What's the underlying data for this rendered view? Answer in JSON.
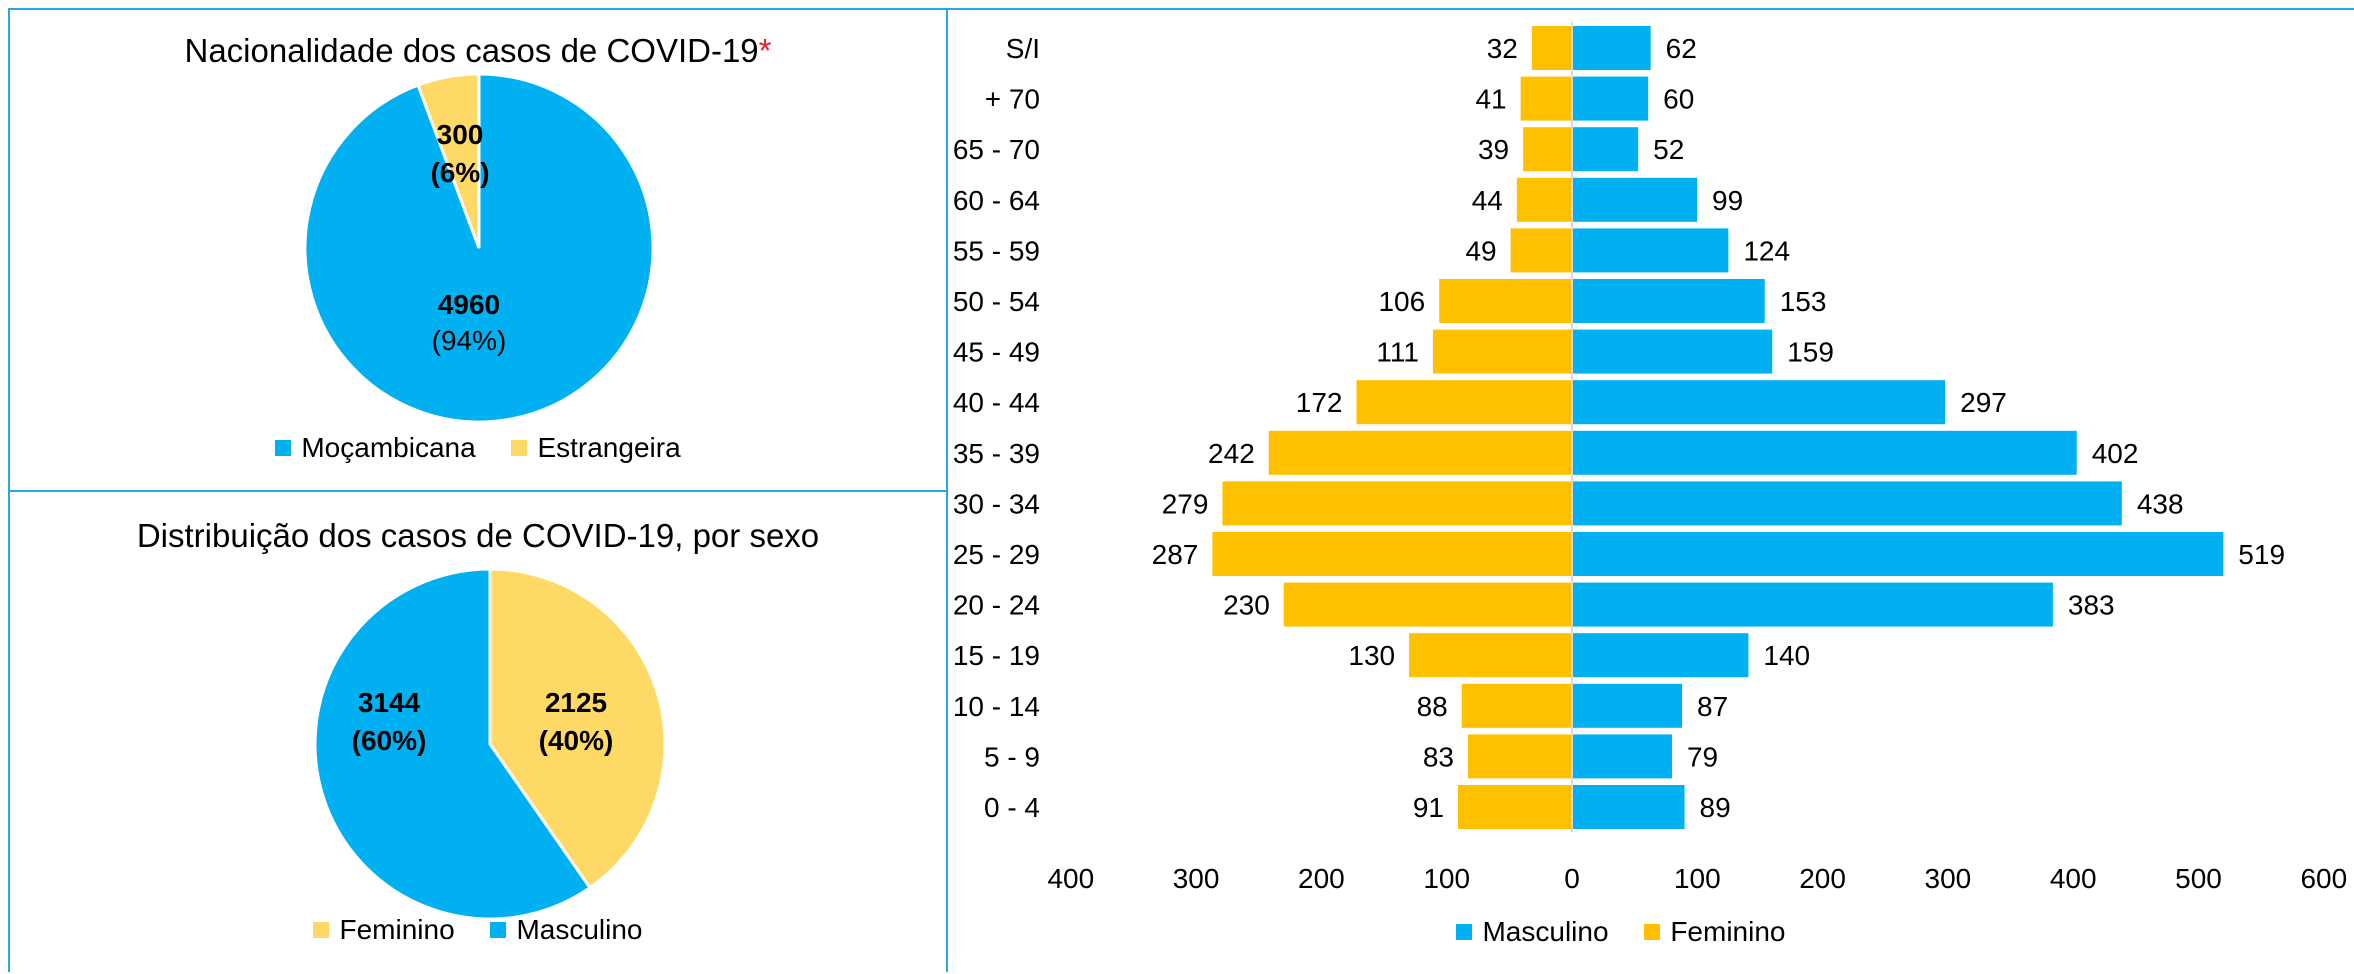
{
  "colors": {
    "mocambicana": "#00b0f0",
    "estrangeira": "#ffd966",
    "feminino_pie": "#ffd966",
    "masculino": "#00b0f0",
    "feminino_bar": "#ffc000",
    "border": "#2aa7df",
    "asterisk": "#e8202a"
  },
  "chart_data": [
    {
      "type": "pie",
      "title": "Nacionalidade dos casos de COVID-19",
      "title_marker": "*",
      "labels": [
        "Moçambicana",
        "Estrangeira"
      ],
      "values": [
        4960,
        300
      ],
      "value_labels": [
        "4960",
        "300"
      ],
      "percent_labels": [
        "(94%)",
        "(6%)"
      ],
      "legend": [
        "Moçambicana",
        "Estrangeira"
      ],
      "legend_position": "bottom"
    },
    {
      "type": "pie",
      "title": "Distribuição dos casos de COVID-19, por sexo",
      "labels": [
        "Feminino",
        "Masculino"
      ],
      "values": [
        2125,
        3144
      ],
      "value_labels": [
        "2125",
        "3144"
      ],
      "percent_labels": [
        "(40%)",
        "(60%)"
      ],
      "legend": [
        "Feminino",
        "Masculino"
      ],
      "legend_position": "bottom"
    },
    {
      "type": "bar",
      "orientation": "horizontal",
      "categories": [
        "S/I",
        "+ 70",
        "65 - 70",
        "60 - 64",
        "55 - 59",
        "50 - 54",
        "45 - 49",
        "40 - 44",
        "35 - 39",
        "30 - 34",
        "25 - 29",
        "20 - 24",
        "15 - 19",
        "10 - 14",
        "5 - 9",
        "0 - 4"
      ],
      "series": [
        {
          "name": "Masculino",
          "values": [
            62,
            60,
            52,
            99,
            124,
            153,
            159,
            297,
            402,
            438,
            519,
            383,
            140,
            87,
            79,
            89
          ]
        },
        {
          "name": "Feminino",
          "values": [
            32,
            41,
            39,
            44,
            49,
            106,
            111,
            172,
            242,
            279,
            287,
            230,
            130,
            88,
            83,
            91
          ]
        }
      ],
      "xlim": [
        -400,
        600
      ],
      "x_ticks": [
        -400,
        -300,
        -200,
        -100,
        0,
        100,
        200,
        300,
        400,
        500,
        600
      ],
      "x_tick_labels": [
        "400",
        "300",
        "200",
        "100",
        "0",
        "100",
        "200",
        "300",
        "400",
        "500",
        "600"
      ],
      "legend": [
        "Masculino",
        "Feminino"
      ],
      "legend_position": "bottom",
      "grid": false
    }
  ]
}
